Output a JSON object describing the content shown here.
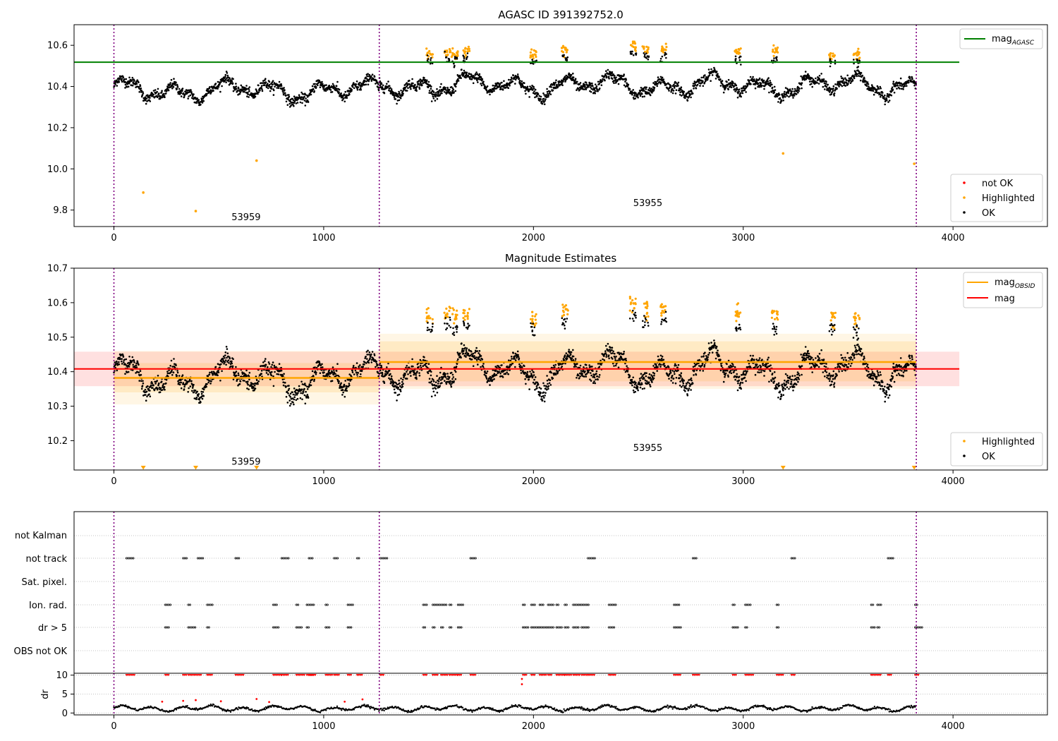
{
  "chart_data": [
    {
      "type": "scatter",
      "title": "AGASC ID 391392752.0",
      "xlim": [
        -190,
        4450
      ],
      "ylim": [
        9.72,
        10.7
      ],
      "xticks": [
        0,
        1000,
        2000,
        3000,
        4000
      ],
      "yticks": [
        9.8,
        10.0,
        10.2,
        10.4,
        10.6
      ],
      "ytick_labels": [
        "9.8",
        "10.0",
        "10.2",
        "10.4",
        "10.6"
      ],
      "mag_agasc": 10.518,
      "mag_agasc_xrange": [
        -190,
        4030
      ],
      "obsid_boundaries": [
        0,
        1265,
        3825
      ],
      "segment_labels": [
        {
          "text": "53959",
          "x": 630,
          "y": 9.75
        },
        {
          "text": "53955",
          "x": 2545,
          "y": 9.82
        }
      ],
      "series": [
        {
          "name": "not OK",
          "color": "#ff0000"
        },
        {
          "name": "Highlighted",
          "color": "#ffa500"
        },
        {
          "name": "OK",
          "color": "#000000"
        }
      ],
      "ok_segments": [
        {
          "x0": 0,
          "x1": 1265,
          "mean": 10.382,
          "noise": 0.038
        },
        {
          "x0": 1265,
          "x1": 3825,
          "mean": 10.405,
          "noise": 0.034
        }
      ],
      "highlighted_clusters": [
        {
          "x": 1505,
          "y": 10.56
        },
        {
          "x": 1590,
          "y": 10.57
        },
        {
          "x": 1625,
          "y": 10.56
        },
        {
          "x": 1680,
          "y": 10.57
        },
        {
          "x": 2000,
          "y": 10.555
        },
        {
          "x": 2150,
          "y": 10.58
        },
        {
          "x": 2475,
          "y": 10.595
        },
        {
          "x": 2535,
          "y": 10.58
        },
        {
          "x": 2620,
          "y": 10.58
        },
        {
          "x": 2975,
          "y": 10.565
        },
        {
          "x": 3150,
          "y": 10.565
        },
        {
          "x": 3425,
          "y": 10.555
        },
        {
          "x": 3540,
          "y": 10.555
        }
      ],
      "highlighted_outliers": [
        {
          "x": 140,
          "y": 9.885
        },
        {
          "x": 390,
          "y": 9.795
        },
        {
          "x": 680,
          "y": 10.04
        },
        {
          "x": 3190,
          "y": 10.075
        },
        {
          "x": 3815,
          "y": 10.025
        }
      ],
      "legend": {
        "upper_right": [
          "mag_AGASC"
        ],
        "lower_right": [
          "not OK",
          "Highlighted",
          "OK"
        ]
      }
    },
    {
      "type": "scatter",
      "title": "Magnitude Estimates",
      "xlim": [
        -190,
        4450
      ],
      "ylim": [
        10.115,
        10.7
      ],
      "xticks": [
        0,
        1000,
        2000,
        3000,
        4000
      ],
      "yticks": [
        10.2,
        10.3,
        10.4,
        10.5,
        10.6,
        10.7
      ],
      "ytick_labels": [
        "10.2",
        "10.3",
        "10.4",
        "10.5",
        "10.6",
        "10.7"
      ],
      "mag": 10.408,
      "mag_band": [
        10.358,
        10.458
      ],
      "mag_xrange": [
        -190,
        4030
      ],
      "mag_obsid": [
        {
          "x0": 0,
          "x1": 1265,
          "value": 10.382,
          "band": [
            10.34,
            10.425
          ],
          "band_outer": [
            10.305,
            10.46
          ]
        },
        {
          "x0": 1265,
          "x1": 3825,
          "value": 10.428,
          "band": [
            10.372,
            10.488
          ],
          "band_outer": [
            10.35,
            10.51
          ]
        }
      ],
      "obsid_boundaries": [
        0,
        1265,
        3825
      ],
      "segment_labels": [
        {
          "text": "53959",
          "x": 630,
          "y": 10.13
        },
        {
          "text": "53955",
          "x": 2545,
          "y": 10.17
        }
      ],
      "lower_markers_x": [
        140,
        390,
        680,
        3190,
        3815
      ],
      "series": [
        {
          "name": "Highlighted",
          "color": "#ffa500"
        },
        {
          "name": "OK",
          "color": "#000000"
        }
      ],
      "legend": {
        "upper_right": [
          "mag_OBSID",
          "mag"
        ],
        "lower_right": [
          "Highlighted",
          "OK"
        ]
      }
    },
    {
      "type": "scatter",
      "xlim": [
        -190,
        4450
      ],
      "flag_labels": [
        "not Kalman",
        "not track",
        "Sat. pixel.",
        "Ion. rad.",
        "dr > 5",
        "OBS not OK"
      ],
      "obsid_boundaries": [
        0,
        1265,
        3825
      ],
      "flag_events": {
        "not track": [
          60,
          330,
          400,
          580,
          800,
          930,
          1050,
          1160,
          1270,
          1700,
          2260,
          2760,
          3230,
          3690
        ],
        "Ion. rad.": [
          245,
          355,
          445,
          760,
          870,
          920,
          1010,
          1115,
          1475,
          1520,
          1560,
          1600,
          1640,
          1950,
          1990,
          2030,
          2070,
          2110,
          2150,
          2190,
          2230,
          2360,
          2670,
          2950,
          3010,
          3160,
          3610,
          3640,
          3820
        ],
        "dr > 5": [
          245,
          355,
          445,
          760,
          870,
          920,
          1010,
          1115,
          1475,
          1520,
          1560,
          1600,
          1640,
          1950,
          1990,
          2030,
          2070,
          2110,
          2150,
          2190,
          2230,
          2360,
          2670,
          2950,
          3010,
          3160,
          3610,
          3640,
          3820
        ]
      }
    },
    {
      "type": "scatter",
      "ylabel": "dr",
      "xlim": [
        -190,
        4450
      ],
      "ylim": [
        -0.5,
        10.5
      ],
      "xticks": [
        0,
        1000,
        2000,
        3000,
        4000
      ],
      "yticks": [
        0,
        5,
        10
      ],
      "ytick_labels": [
        "0",
        "5",
        "10"
      ],
      "obsid_boundaries": [
        0,
        1265,
        3825
      ],
      "dr_ok_mean": 1.2,
      "dr_clipped_value": 10,
      "dr_clipped_x": [
        60,
        245,
        330,
        355,
        400,
        445,
        580,
        760,
        800,
        870,
        920,
        930,
        1010,
        1050,
        1115,
        1160,
        1270,
        1475,
        1520,
        1560,
        1600,
        1640,
        1700,
        1950,
        1990,
        2030,
        2070,
        2110,
        2150,
        2190,
        2230,
        2260,
        2360,
        2670,
        2760,
        2950,
        3010,
        3160,
        3230,
        3610,
        3640,
        3690,
        3820
      ],
      "dr_red_points": [
        {
          "x": 230,
          "y": 3.0
        },
        {
          "x": 330,
          "y": 3.2
        },
        {
          "x": 390,
          "y": 3.4
        },
        {
          "x": 510,
          "y": 3.1
        },
        {
          "x": 680,
          "y": 3.7
        },
        {
          "x": 740,
          "y": 2.9
        },
        {
          "x": 1100,
          "y": 3.0
        },
        {
          "x": 1185,
          "y": 3.6
        },
        {
          "x": 1945,
          "y": 7.6
        },
        {
          "x": 1945,
          "y": 9.0
        }
      ]
    }
  ]
}
